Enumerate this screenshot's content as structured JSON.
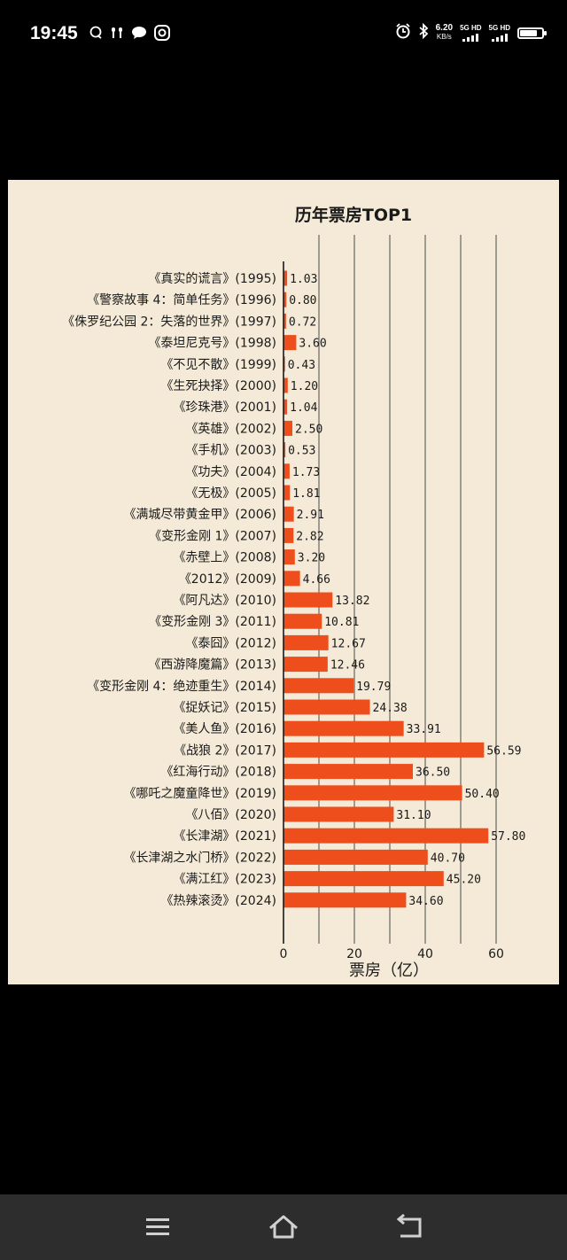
{
  "status_bar": {
    "time": "19:45",
    "net_speed_value": "6.20",
    "net_speed_unit": "KB/s",
    "sim1_label": "5G HD",
    "sim2_label": "5G HD",
    "battery_level": 0.8,
    "icons": [
      "chat-bubble-icon",
      "earbuds-icon",
      "message-icon",
      "app-badge-icon",
      "alarm-icon",
      "bluetooth-icon",
      "signal-icon",
      "battery-icon"
    ]
  },
  "chart_data": {
    "type": "bar",
    "orientation": "horizontal",
    "title": "历年票房TOP1",
    "xlabel": "票房（亿）",
    "ylabel": "",
    "xlim": [
      0,
      60
    ],
    "xticks": [
      "0",
      "20",
      "40",
      "60"
    ],
    "grid": "vertical",
    "bar_color": "#ee4e1c",
    "categories": [
      "《真实的谎言》(1995)",
      "《警察故事 4：简单任务》(1996)",
      "《侏罗纪公园 2：失落的世界》(1997)",
      "《泰坦尼克号》(1998)",
      "《不见不散》(1999)",
      "《生死抉择》(2000)",
      "《珍珠港》(2001)",
      "《英雄》(2002)",
      "《手机》(2003)",
      "《功夫》(2004)",
      "《无极》(2005)",
      "《满城尽带黄金甲》(2006)",
      "《变形金刚 1》(2007)",
      "《赤壁上》(2008)",
      "《2012》(2009)",
      "《阿凡达》(2010)",
      "《变形金刚 3》(2011)",
      "《泰囧》(2012)",
      "《西游降魔篇》(2013)",
      "《变形金刚 4：绝迹重生》(2014)",
      "《捉妖记》(2015)",
      "《美人鱼》(2016)",
      "《战狼 2》(2017)",
      "《红海行动》(2018)",
      "《哪吒之魔童降世》(2019)",
      "《八佰》(2020)",
      "《长津湖》(2021)",
      "《长津湖之水门桥》(2022)",
      "《满江红》(2023)",
      "《热辣滚烫》(2024)"
    ],
    "values": [
      1.03,
      0.8,
      0.72,
      3.6,
      0.43,
      1.2,
      1.04,
      2.5,
      0.53,
      1.73,
      1.81,
      2.91,
      2.82,
      3.2,
      4.66,
      13.82,
      10.81,
      12.67,
      12.46,
      19.79,
      24.38,
      33.91,
      56.59,
      36.5,
      50.4,
      31.1,
      57.8,
      40.7,
      45.2,
      34.6
    ],
    "value_labels": [
      "1.03",
      "0.80",
      "0.72",
      "3.60",
      "0.43",
      "1.20",
      "1.04",
      "2.50",
      "0.53",
      "1.73",
      "1.81",
      "2.91",
      "2.82",
      "3.20",
      "4.66",
      "13.82",
      "10.81",
      "12.67",
      "12.46",
      "19.79",
      "24.38",
      "33.91",
      "56.59",
      "36.50",
      "50.40",
      "31.10",
      "57.80",
      "40.70",
      "45.20",
      "34.60"
    ]
  },
  "nav_bar": {
    "buttons": [
      "menu-icon",
      "home-icon",
      "back-icon"
    ]
  }
}
